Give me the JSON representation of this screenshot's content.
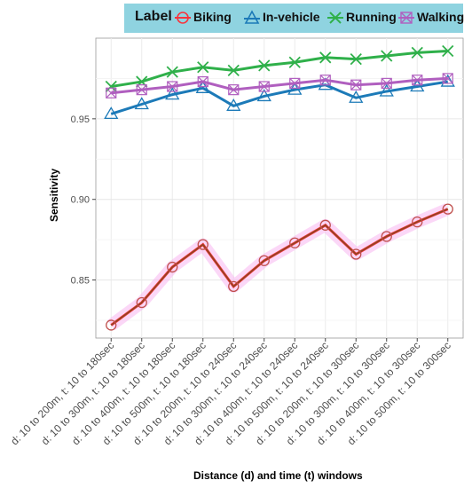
{
  "chart_data": {
    "type": "line",
    "legend_title": "Label",
    "legend_position": "top",
    "categories": [
      "d: 10 to 200m, t: 10 to 180sec",
      "d: 10 to 300m, t: 10 to 180sec",
      "d: 10 to 400m, t: 10 to 180sec",
      "d: 10 to 500m, t: 10 to 180sec",
      "d: 10 to 200m, t: 10 to 240sec",
      "d: 10 to 300m, t: 10 to 240sec",
      "d: 10 to 400m, t: 10 to 240sec",
      "d: 10 to 500m, t: 10 to 240sec",
      "d: 10 to 200m, t: 10 to 300sec",
      "d: 10 to 300m, t: 10 to 300sec",
      "d: 10 to 400m, t: 10 to 300sec",
      "d: 10 to 500m, t: 10 to 300sec"
    ],
    "series": [
      {
        "name": "Biking",
        "color": "#f8333c",
        "marker": "circle",
        "values": [
          0.822,
          0.836,
          0.858,
          0.872,
          0.846,
          0.862,
          0.873,
          0.884,
          0.866,
          0.877,
          0.886,
          0.894
        ]
      },
      {
        "name": "In-vehicle",
        "color": "#1c7ab8",
        "marker": "triangle",
        "values": [
          0.953,
          0.959,
          0.965,
          0.969,
          0.958,
          0.964,
          0.968,
          0.971,
          0.963,
          0.967,
          0.97,
          0.973
        ]
      },
      {
        "name": "Running",
        "color": "#2fb04a",
        "marker": "x",
        "values": [
          0.97,
          0.973,
          0.979,
          0.982,
          0.98,
          0.983,
          0.985,
          0.988,
          0.987,
          0.989,
          0.991,
          0.992
        ]
      },
      {
        "name": "Walking",
        "color": "#b05fbf",
        "marker": "boxx",
        "values": [
          0.966,
          0.968,
          0.97,
          0.973,
          0.968,
          0.97,
          0.972,
          0.974,
          0.971,
          0.972,
          0.974,
          0.975
        ]
      }
    ],
    "xlabel": "Distance (d) and time (t) windows",
    "ylabel": "Sensitivity",
    "ylim": [
      0.814,
      1.0
    ],
    "yticks": [
      "0.85",
      "0.90",
      "0.95"
    ],
    "ytick_values": [
      0.85,
      0.9,
      0.95
    ],
    "grid": true
  }
}
